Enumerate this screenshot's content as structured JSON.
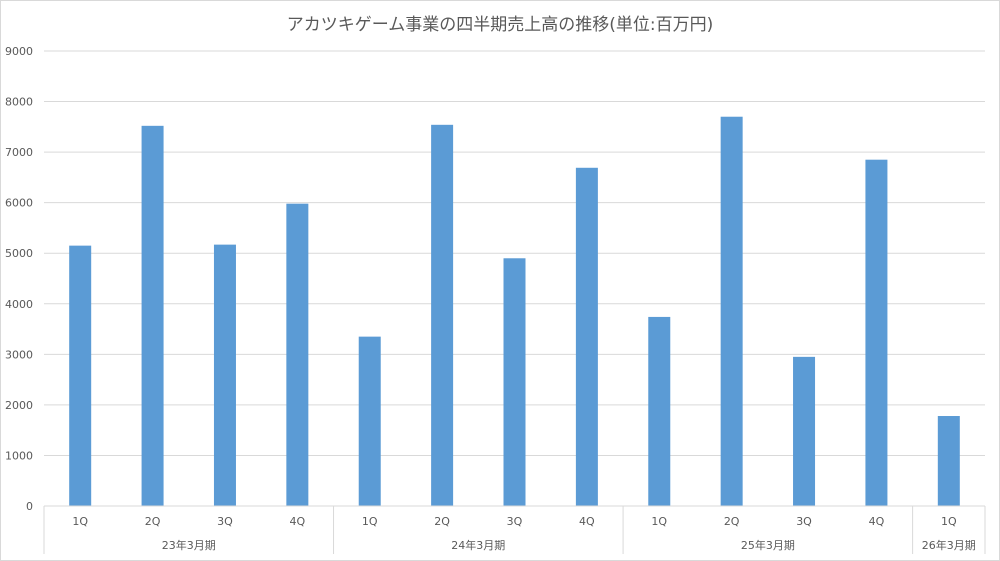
{
  "chart_data": {
    "type": "bar",
    "title": "アカツキゲーム事業の四半期売上高の推移(単位:百万円)",
    "xlabel": "",
    "ylabel": "",
    "ylim": [
      0,
      9000
    ],
    "yticks": [
      "0",
      "1000",
      "2000",
      "3000",
      "4000",
      "5000",
      "6000",
      "7000",
      "8000",
      "9000"
    ],
    "grid": true,
    "legend": "none",
    "bar_color": "#5b9bd5",
    "categories": [
      "1Q",
      "2Q",
      "3Q",
      "4Q",
      "1Q",
      "2Q",
      "3Q",
      "4Q",
      "1Q",
      "2Q",
      "3Q",
      "4Q",
      "1Q"
    ],
    "groups": [
      {
        "label": "23年3月期",
        "count": 4
      },
      {
        "label": "24年3月期",
        "count": 4
      },
      {
        "label": "25年3月期",
        "count": 4
      },
      {
        "label": "26年3月期",
        "count": 1
      }
    ],
    "values": [
      5150,
      7520,
      5170,
      5980,
      3350,
      7540,
      4900,
      6690,
      3740,
      7700,
      2950,
      6850,
      1780
    ]
  }
}
